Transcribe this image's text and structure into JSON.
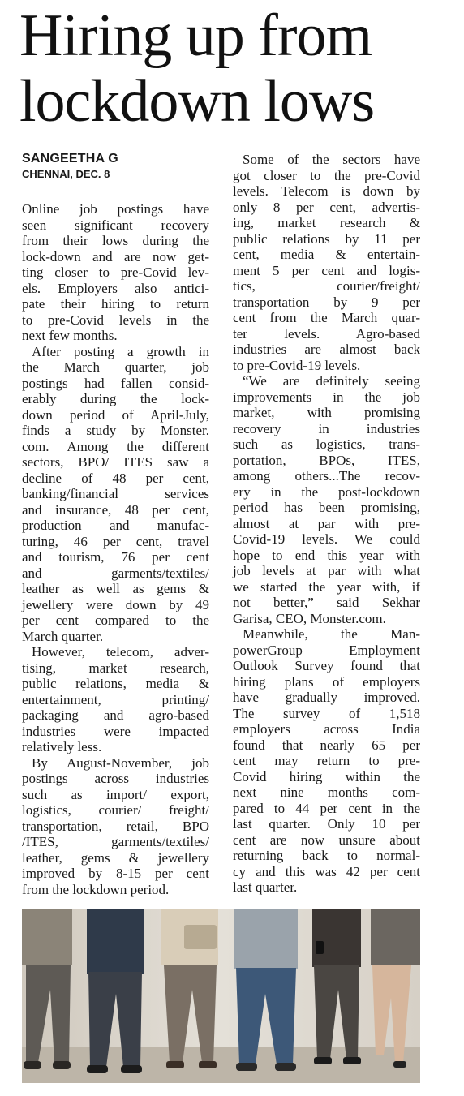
{
  "headline": {
    "lines": [
      "Hiring up from",
      "lockdown lows"
    ]
  },
  "byline": {
    "author": "SANGEETHA G",
    "dateline": "CHENNAI, DEC. 8"
  },
  "columns": [
    {
      "paragraphs": [
        {
          "lines": [
            "Online job postings have",
            "seen significant recovery",
            "from their lows during the",
            "lock-down and are now get-",
            "ting closer to pre-Covid lev-",
            "els. Employers also antici-",
            "pate their hiring to return",
            "to pre-Covid levels in the",
            "next few months."
          ]
        },
        {
          "lines": [
            "After posting a growth in",
            "the March quarter, job",
            "postings had fallen consid-",
            "erably during the lock-",
            "down period of April-July,",
            "finds a study by Monster.",
            "com. Among the different",
            "sectors, BPO/ ITES saw a",
            "decline of 48 per cent,",
            "banking/financial services",
            "and insurance, 48 per cent,",
            "production and manufac-",
            "turing, 46 per cent, travel",
            "and tourism, 76 per cent",
            "and garments/textiles/",
            "leather as well as gems &",
            "jewellery were down by 49",
            "per cent compared to the",
            "March quarter."
          ]
        },
        {
          "lines": [
            "However, telecom, adver-",
            "tising, market research,",
            "public relations, media &",
            "entertainment, printing/",
            "packaging and agro-based",
            "industries were impacted",
            "relatively less."
          ]
        },
        {
          "lines": [
            "By August-November, job",
            "postings across industries",
            "such as import/ export,",
            "logistics, courier/ freight/",
            "transportation, retail, BPO",
            "/ITES, garments/textiles/",
            "leather, gems & jewellery",
            "improved by 8-15 per cent",
            "from the lockdown period."
          ]
        }
      ]
    },
    {
      "paragraphs": [
        {
          "lines": [
            "Some of the sectors have",
            "got closer to the pre-Covid",
            "levels. Telecom is down by",
            "only 8 per cent, advertis-",
            "ing, market research &",
            "public relations by 11 per",
            "cent, media & entertain-",
            "ment 5 per cent and logis-",
            "tics, courier/freight/",
            "transportation by 9 per",
            "cent from the March quar-",
            "ter levels. Agro-based",
            "industries are almost back",
            "to pre-Covid-19 levels."
          ]
        },
        {
          "lines": [
            "“We are definitely seeing",
            "improvements in the job",
            "market, with promising",
            "recovery in industries",
            "such as logistics, trans-",
            "portation, BPOs, ITES,",
            "among others...The recov-",
            "ery in the post-lockdown",
            "period has been promising,",
            "almost at par with pre-",
            "Covid-19 levels. We could",
            "hope to end this year with",
            "job levels at par with what",
            "we started the year with, if",
            "not better,” said Sekhar",
            "Garisa, CEO, Monster.com."
          ]
        },
        {
          "lines": [
            "Meanwhile, the Man-",
            "powerGroup Employment",
            "Outlook Survey found that",
            "hiring plans of employers",
            "have gradually improved.",
            "The survey of 1,518",
            "employers across India",
            "found that nearly 65 per",
            "cent may return to pre-",
            "Covid hiring within the",
            "next nine months com-",
            "pared to 44 per cent in the",
            "last quarter. Only 10 per",
            "cent are now unsure about",
            "returning back to normal-",
            "cy and this was 42 per cent",
            "last quarter."
          ]
        }
      ]
    }
  ]
}
